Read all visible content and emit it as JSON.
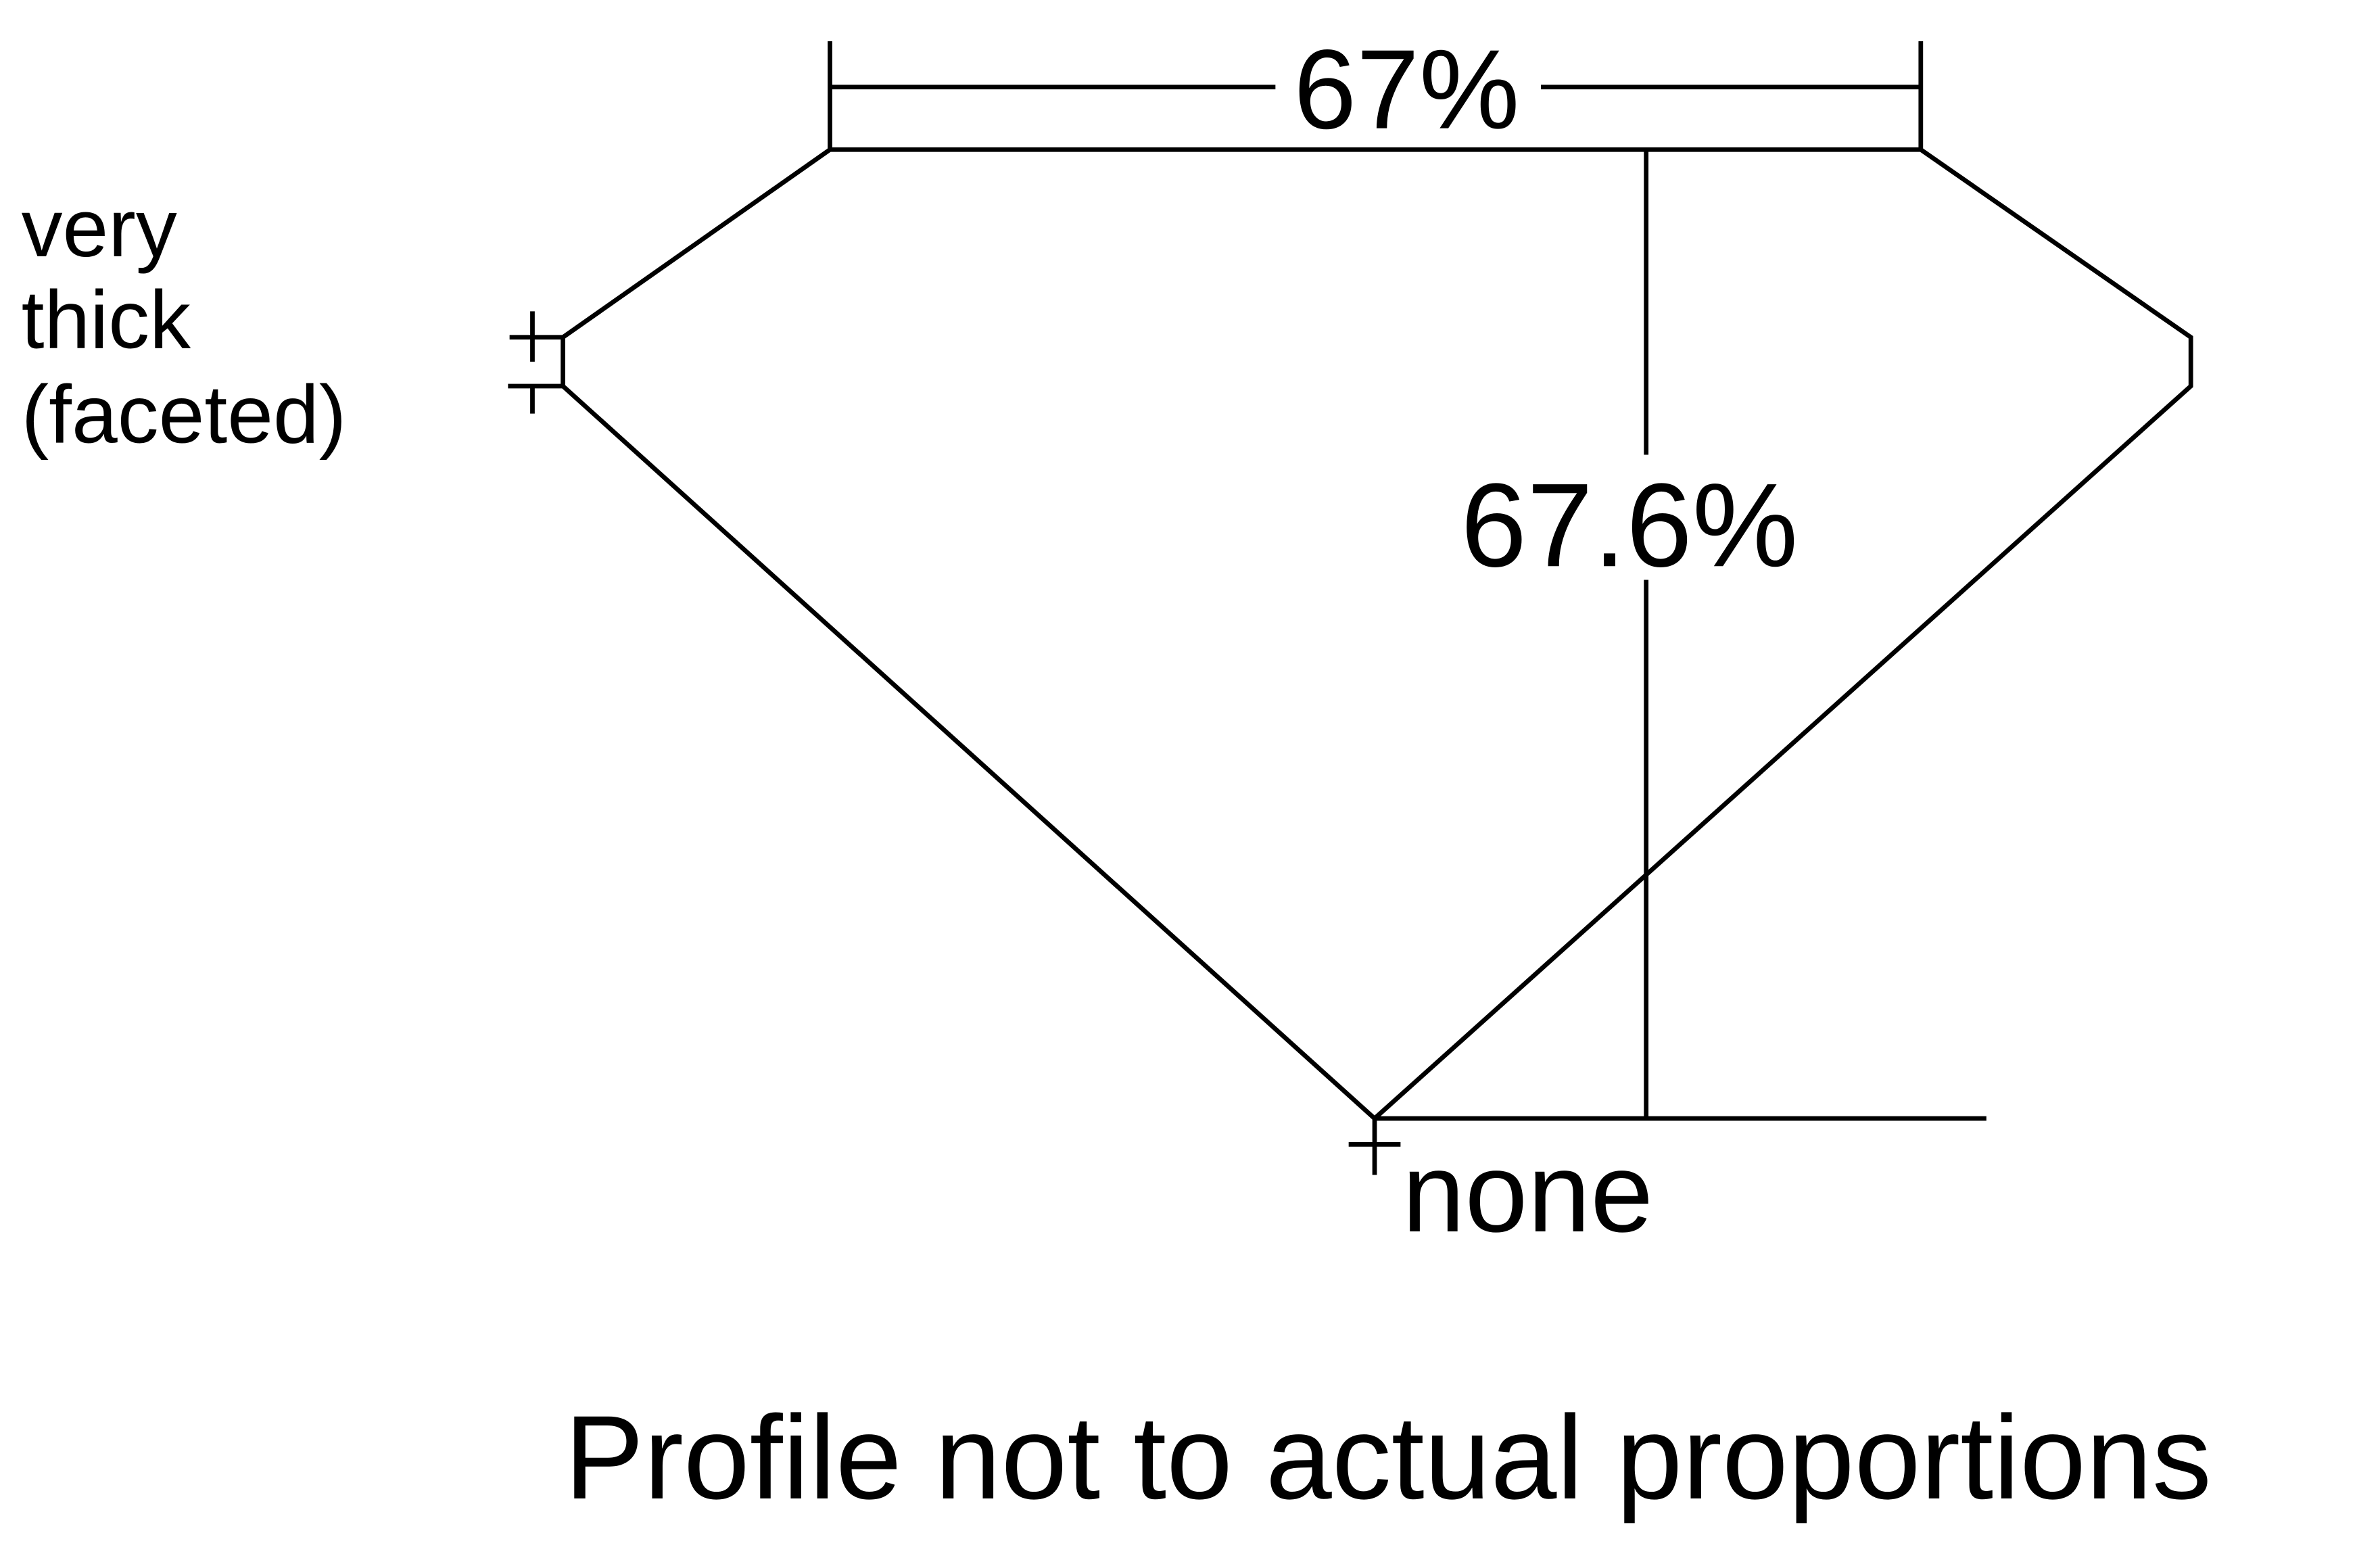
{
  "diagram": {
    "table_width_label": "67%",
    "total_depth_label": "67.6%",
    "culet_label": "none",
    "girdle_label_lines": [
      "very",
      "thick",
      "(faceted)"
    ],
    "footnote": "Profile not to actual proportions",
    "line_color": "#000000",
    "background_color": "#ffffff"
  }
}
